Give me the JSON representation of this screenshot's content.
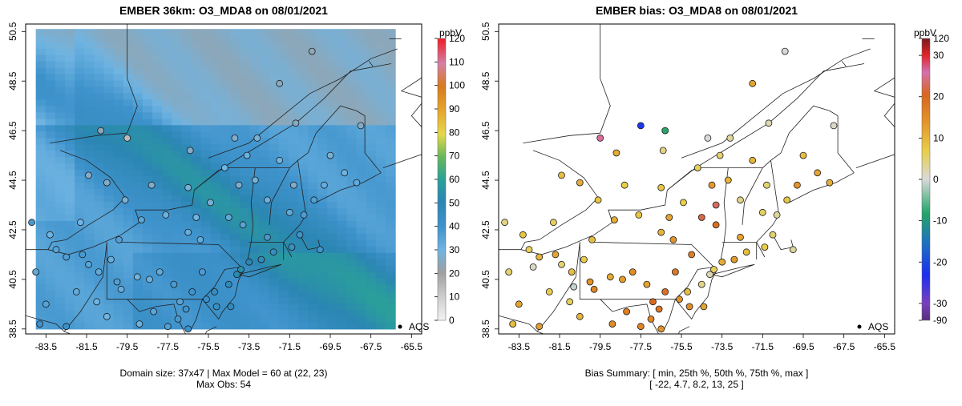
{
  "chart_data": [
    {
      "type": "heatmap",
      "title": "EMBER 36km: O3_MDA8 on 08/01/2021",
      "xlabel": "",
      "ylabel": "",
      "x_ticks": [
        "-83.5",
        "-81.5",
        "-79.5",
        "-77.5",
        "-75.5",
        "-73.5",
        "-71.5",
        "-69.5",
        "-67.5",
        "-65.5"
      ],
      "y_ticks": [
        "38.5",
        "40.5",
        "42.5",
        "44.5",
        "46.5",
        "48.5",
        "50.5"
      ],
      "xlim": [
        -84.5,
        -65.0
      ],
      "ylim": [
        38.3,
        50.8
      ],
      "colorbar": {
        "title": "ppbV",
        "ticks": [
          "0",
          "10",
          "20",
          "30",
          "40",
          "50",
          "60",
          "70",
          "80",
          "90",
          "100",
          "110",
          "120"
        ],
        "range": [
          0,
          120
        ]
      },
      "legend": "AQS",
      "footer_line1": "Domain size: 37x47 | Max Model = 60 at (22, 23)",
      "footer_line2": "Max Obs: 54",
      "grid_cols": 37,
      "grid_rows": 47,
      "model_max": 60,
      "observations": [
        {
          "lon": -83.3,
          "lat": 42.3,
          "val": 30
        },
        {
          "lon": -83.0,
          "lat": 41.7,
          "val": 34
        },
        {
          "lon": -82.5,
          "lat": 41.4,
          "val": 36
        },
        {
          "lon": -81.7,
          "lat": 41.5,
          "val": 38
        },
        {
          "lon": -81.4,
          "lat": 41.1,
          "val": 35
        },
        {
          "lon": -80.9,
          "lat": 40.8,
          "val": 33
        },
        {
          "lon": -80.0,
          "lat": 40.4,
          "val": 36
        },
        {
          "lon": -79.8,
          "lat": 40.1,
          "val": 32
        },
        {
          "lon": -79.0,
          "lat": 40.6,
          "val": 30
        },
        {
          "lon": -78.4,
          "lat": 40.5,
          "val": 31
        },
        {
          "lon": -77.9,
          "lat": 40.8,
          "val": 33
        },
        {
          "lon": -77.2,
          "lat": 40.3,
          "val": 37
        },
        {
          "lon": -76.6,
          "lat": 39.3,
          "val": 40
        },
        {
          "lon": -77.0,
          "lat": 38.9,
          "val": 38
        },
        {
          "lon": -76.9,
          "lat": 39.6,
          "val": 35
        },
        {
          "lon": -75.6,
          "lat": 39.7,
          "val": 41
        },
        {
          "lon": -75.2,
          "lat": 40.0,
          "val": 45
        },
        {
          "lon": -74.5,
          "lat": 40.3,
          "val": 48
        },
        {
          "lon": -74.1,
          "lat": 40.7,
          "val": 52
        },
        {
          "lon": -73.9,
          "lat": 40.9,
          "val": 54
        },
        {
          "lon": -73.5,
          "lat": 41.2,
          "val": 50
        },
        {
          "lon": -72.9,
          "lat": 41.3,
          "val": 47
        },
        {
          "lon": -72.3,
          "lat": 41.6,
          "val": 44
        },
        {
          "lon": -71.4,
          "lat": 41.8,
          "val": 42
        },
        {
          "lon": -71.0,
          "lat": 42.3,
          "val": 40
        },
        {
          "lon": -72.6,
          "lat": 42.2,
          "val": 38
        },
        {
          "lon": -73.8,
          "lat": 42.7,
          "val": 35
        },
        {
          "lon": -75.9,
          "lat": 42.1,
          "val": 33
        },
        {
          "lon": -76.5,
          "lat": 42.4,
          "val": 32
        },
        {
          "lon": -77.6,
          "lat": 43.1,
          "val": 31
        },
        {
          "lon": -78.8,
          "lat": 42.9,
          "val": 34
        },
        {
          "lon": -79.9,
          "lat": 42.1,
          "val": 36
        },
        {
          "lon": -76.1,
          "lat": 43.0,
          "val": 30
        },
        {
          "lon": -75.4,
          "lat": 43.6,
          "val": 28
        },
        {
          "lon": -74.0,
          "lat": 44.3,
          "val": 27
        },
        {
          "lon": -73.2,
          "lat": 44.5,
          "val": 29
        },
        {
          "lon": -72.6,
          "lat": 43.7,
          "val": 31
        },
        {
          "lon": -71.5,
          "lat": 43.2,
          "val": 33
        },
        {
          "lon": -70.8,
          "lat": 43.1,
          "val": 37
        },
        {
          "lon": -70.3,
          "lat": 43.7,
          "val": 36
        },
        {
          "lon": -69.8,
          "lat": 44.3,
          "val": 32
        },
        {
          "lon": -68.8,
          "lat": 44.8,
          "val": 30
        },
        {
          "lon": -68.2,
          "lat": 44.4,
          "val": 33
        },
        {
          "lon": -68.0,
          "lat": 46.7,
          "val": 26
        },
        {
          "lon": -69.5,
          "lat": 45.5,
          "val": 28
        },
        {
          "lon": -71.3,
          "lat": 44.3,
          "val": 27
        },
        {
          "lon": -70.0,
          "lat": 41.7,
          "val": 39
        },
        {
          "lon": -78.2,
          "lat": 39.2,
          "val": 34
        },
        {
          "lon": -78.9,
          "lat": 38.7,
          "val": 31
        },
        {
          "lon": -80.5,
          "lat": 39.0,
          "val": 30
        },
        {
          "lon": -82.0,
          "lat": 40.0,
          "val": 33
        },
        {
          "lon": -83.5,
          "lat": 39.5,
          "val": 35
        },
        {
          "lon": -84.0,
          "lat": 40.8,
          "val": 33
        },
        {
          "lon": -83.8,
          "lat": 38.7,
          "val": 40
        },
        {
          "lon": -82.5,
          "lat": 38.6,
          "val": 42
        },
        {
          "lon": -84.2,
          "lat": 42.8,
          "val": 38
        },
        {
          "lon": -81.8,
          "lat": 42.8,
          "val": 30
        },
        {
          "lon": -79.6,
          "lat": 43.7,
          "val": 28
        },
        {
          "lon": -80.5,
          "lat": 44.4,
          "val": 26
        },
        {
          "lon": -81.4,
          "lat": 44.7,
          "val": 26
        },
        {
          "lon": -78.3,
          "lat": 44.3,
          "val": 27
        },
        {
          "lon": -76.5,
          "lat": 44.2,
          "val": 29
        },
        {
          "lon": -74.7,
          "lat": 45.0,
          "val": 30
        },
        {
          "lon": -73.6,
          "lat": 45.5,
          "val": 31
        },
        {
          "lon": -72.0,
          "lat": 45.3,
          "val": 30
        },
        {
          "lon": -71.2,
          "lat": 46.8,
          "val": 26
        },
        {
          "lon": -74.2,
          "lat": 46.2,
          "val": 27
        },
        {
          "lon": -76.4,
          "lat": 45.7,
          "val": 26
        },
        {
          "lon": -79.5,
          "lat": 46.2,
          "val": 14
        },
        {
          "lon": -80.8,
          "lat": 46.5,
          "val": 24
        },
        {
          "lon": -70.4,
          "lat": 49.7,
          "val": 24
        },
        {
          "lon": -72.0,
          "lat": 48.4,
          "val": 25
        },
        {
          "lon": -73.1,
          "lat": 46.2,
          "val": 28
        },
        {
          "lon": -74.5,
          "lat": 43.0,
          "val": 33
        },
        {
          "lon": -75.8,
          "lat": 40.8,
          "val": 37
        },
        {
          "lon": -76.3,
          "lat": 40.0,
          "val": 40
        },
        {
          "lon": -75.1,
          "lat": 39.4,
          "val": 43
        },
        {
          "lon": -74.4,
          "lat": 39.4,
          "val": 46
        },
        {
          "lon": -77.5,
          "lat": 38.6,
          "val": 36
        },
        {
          "lon": -76.5,
          "lat": 38.5,
          "val": 41
        },
        {
          "lon": -80.3,
          "lat": 41.3,
          "val": 32
        },
        {
          "lon": -81.0,
          "lat": 39.6,
          "val": 30
        }
      ]
    },
    {
      "type": "scatter",
      "title": "EMBER bias: O3_MDA8 on 08/01/2021",
      "xlabel": "",
      "ylabel": "",
      "x_ticks": [
        "-83.5",
        "-81.5",
        "-79.5",
        "-77.5",
        "-75.5",
        "-73.5",
        "-71.5",
        "-69.5",
        "-67.5",
        "-65.5"
      ],
      "y_ticks": [
        "38.5",
        "40.5",
        "42.5",
        "44.5",
        "46.5",
        "48.5",
        "50.5"
      ],
      "xlim": [
        -84.5,
        -65.0
      ],
      "ylim": [
        38.3,
        50.8
      ],
      "colorbar": {
        "title": "ppbV",
        "ticks": [
          "-90",
          "-30",
          "-20",
          "-10",
          "0",
          "10",
          "20",
          "30",
          "120"
        ]
      },
      "legend": "AQS",
      "footer_line1": "Bias Summary: [ min, 25th %, 50th %, 75th %, max ]",
      "footer_line2": "[ -22,   4.7,   8.2,   13,   25 ]",
      "bias_summary": {
        "min": -22,
        "p25": 4.7,
        "p50": 8.2,
        "p75": 13,
        "max": 25
      },
      "points": [
        {
          "lon": -83.3,
          "lat": 42.3,
          "val": 8
        },
        {
          "lon": -83.0,
          "lat": 41.7,
          "val": 6
        },
        {
          "lon": -82.5,
          "lat": 41.4,
          "val": 10
        },
        {
          "lon": -81.7,
          "lat": 41.5,
          "val": 12
        },
        {
          "lon": -81.4,
          "lat": 41.1,
          "val": 5
        },
        {
          "lon": -80.9,
          "lat": 40.8,
          "val": 9
        },
        {
          "lon": -80.0,
          "lat": 40.4,
          "val": 14
        },
        {
          "lon": -79.8,
          "lat": 40.1,
          "val": 16
        },
        {
          "lon": -79.0,
          "lat": 40.6,
          "val": 11
        },
        {
          "lon": -78.4,
          "lat": 40.5,
          "val": 13
        },
        {
          "lon": -77.9,
          "lat": 40.8,
          "val": 15
        },
        {
          "lon": -77.2,
          "lat": 40.3,
          "val": 12
        },
        {
          "lon": -76.6,
          "lat": 39.3,
          "val": 18
        },
        {
          "lon": -77.0,
          "lat": 38.9,
          "val": 16
        },
        {
          "lon": -76.9,
          "lat": 39.6,
          "val": 20
        },
        {
          "lon": -75.6,
          "lat": 39.7,
          "val": 14
        },
        {
          "lon": -75.2,
          "lat": 40.0,
          "val": 9
        },
        {
          "lon": -74.5,
          "lat": 40.3,
          "val": 4
        },
        {
          "lon": -74.1,
          "lat": 40.7,
          "val": 2
        },
        {
          "lon": -73.9,
          "lat": 40.9,
          "val": 6
        },
        {
          "lon": -73.5,
          "lat": 41.2,
          "val": 11
        },
        {
          "lon": -72.9,
          "lat": 41.3,
          "val": 13
        },
        {
          "lon": -72.3,
          "lat": 41.6,
          "val": 9
        },
        {
          "lon": -71.4,
          "lat": 41.8,
          "val": 7
        },
        {
          "lon": -71.0,
          "lat": 42.3,
          "val": 5
        },
        {
          "lon": -72.6,
          "lat": 42.2,
          "val": 12
        },
        {
          "lon": -73.8,
          "lat": 42.7,
          "val": 19
        },
        {
          "lon": -75.9,
          "lat": 42.1,
          "val": 14
        },
        {
          "lon": -76.5,
          "lat": 42.4,
          "val": 10
        },
        {
          "lon": -77.6,
          "lat": 43.1,
          "val": 8
        },
        {
          "lon": -78.8,
          "lat": 42.9,
          "val": 11
        },
        {
          "lon": -79.9,
          "lat": 42.1,
          "val": 9
        },
        {
          "lon": -76.1,
          "lat": 43.0,
          "val": 12
        },
        {
          "lon": -75.4,
          "lat": 43.6,
          "val": 7
        },
        {
          "lon": -74.0,
          "lat": 44.3,
          "val": 13
        },
        {
          "lon": -73.2,
          "lat": 44.5,
          "val": 10
        },
        {
          "lon": -72.6,
          "lat": 43.7,
          "val": 4
        },
        {
          "lon": -71.5,
          "lat": 43.2,
          "val": 6
        },
        {
          "lon": -70.8,
          "lat": 43.1,
          "val": 3
        },
        {
          "lon": -70.3,
          "lat": 43.7,
          "val": 8
        },
        {
          "lon": -69.8,
          "lat": 44.3,
          "val": 14
        },
        {
          "lon": -68.8,
          "lat": 44.8,
          "val": 12
        },
        {
          "lon": -68.2,
          "lat": 44.4,
          "val": 11
        },
        {
          "lon": -68.0,
          "lat": 46.7,
          "val": 1
        },
        {
          "lon": -69.5,
          "lat": 45.5,
          "val": 9
        },
        {
          "lon": -71.3,
          "lat": 44.3,
          "val": 5
        },
        {
          "lon": -70.0,
          "lat": 41.7,
          "val": 3
        },
        {
          "lon": -78.2,
          "lat": 39.2,
          "val": 17
        },
        {
          "lon": -78.9,
          "lat": 38.7,
          "val": 15
        },
        {
          "lon": -80.5,
          "lat": 39.0,
          "val": 10
        },
        {
          "lon": -82.0,
          "lat": 40.0,
          "val": 7
        },
        {
          "lon": -83.5,
          "lat": 39.5,
          "val": 12
        },
        {
          "lon": -84.0,
          "lat": 40.8,
          "val": 5
        },
        {
          "lon": -83.8,
          "lat": 38.7,
          "val": 9
        },
        {
          "lon": -82.5,
          "lat": 38.6,
          "val": 13
        },
        {
          "lon": -84.2,
          "lat": 42.8,
          "val": 4
        },
        {
          "lon": -81.8,
          "lat": 42.8,
          "val": 6
        },
        {
          "lon": -79.6,
          "lat": 43.7,
          "val": 8
        },
        {
          "lon": -80.5,
          "lat": 44.4,
          "val": 11
        },
        {
          "lon": -81.4,
          "lat": 44.7,
          "val": 9
        },
        {
          "lon": -78.3,
          "lat": 44.3,
          "val": 7
        },
        {
          "lon": -76.5,
          "lat": 44.2,
          "val": 8
        },
        {
          "lon": -74.7,
          "lat": 45.0,
          "val": 6
        },
        {
          "lon": -73.6,
          "lat": 45.5,
          "val": 5
        },
        {
          "lon": -72.0,
          "lat": 45.3,
          "val": 10
        },
        {
          "lon": -71.2,
          "lat": 46.8,
          "val": 2
        },
        {
          "lon": -74.2,
          "lat": 46.2,
          "val": 0
        },
        {
          "lon": -76.4,
          "lat": 45.7,
          "val": 4
        },
        {
          "lon": -79.5,
          "lat": 46.2,
          "val": 25
        },
        {
          "lon": -78.7,
          "lat": 45.6,
          "val": 11
        },
        {
          "lon": -77.5,
          "lat": 46.7,
          "val": -22
        },
        {
          "lon": -76.3,
          "lat": 46.5,
          "val": -8
        },
        {
          "lon": -70.4,
          "lat": 49.7,
          "val": 0
        },
        {
          "lon": -72.0,
          "lat": 48.4,
          "val": 12
        },
        {
          "lon": -73.1,
          "lat": 46.2,
          "val": 3
        },
        {
          "lon": -74.5,
          "lat": 43.0,
          "val": 22
        },
        {
          "lon": -75.8,
          "lat": 40.8,
          "val": 18
        },
        {
          "lon": -76.3,
          "lat": 40.0,
          "val": 19
        },
        {
          "lon": -75.1,
          "lat": 39.4,
          "val": 15
        },
        {
          "lon": -74.4,
          "lat": 39.4,
          "val": 12
        },
        {
          "lon": -77.5,
          "lat": 38.6,
          "val": 16
        },
        {
          "lon": -76.5,
          "lat": 38.5,
          "val": 14
        },
        {
          "lon": -80.3,
          "lat": 41.3,
          "val": 7
        },
        {
          "lon": -81.0,
          "lat": 39.6,
          "val": 6
        },
        {
          "lon": -82.8,
          "lat": 41.0,
          "val": 1
        },
        {
          "lon": -80.8,
          "lat": 40.2,
          "val": -1
        },
        {
          "lon": -73.8,
          "lat": 43.5,
          "val": 23
        },
        {
          "lon": -75.0,
          "lat": 41.5,
          "val": 17
        }
      ]
    }
  ]
}
